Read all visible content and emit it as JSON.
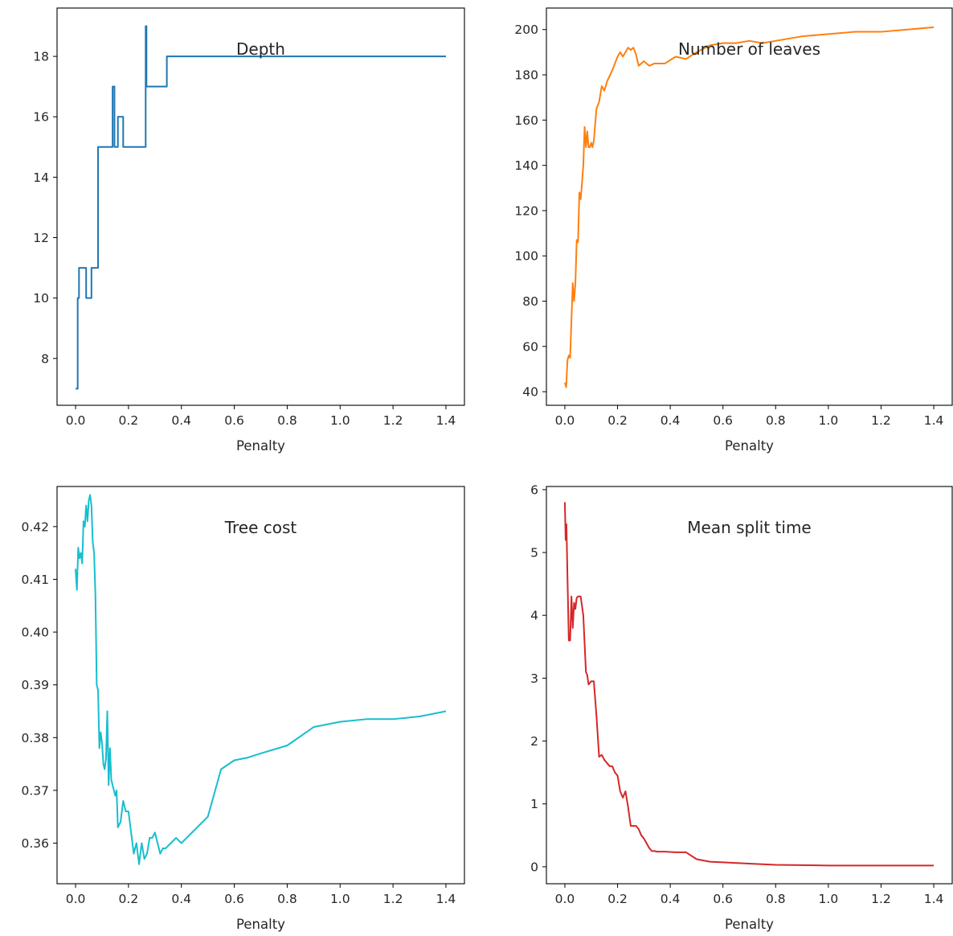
{
  "chart_data": [
    {
      "type": "line",
      "title": "Depth",
      "xlabel": "Penalty",
      "ylabel": "",
      "xlim": [
        -0.07,
        1.47
      ],
      "ylim": [
        6.45,
        19.6
      ],
      "xticks": [
        0.0,
        0.2,
        0.4,
        0.6,
        0.8,
        1.0,
        1.2,
        1.4
      ],
      "yticks": [
        8,
        10,
        12,
        14,
        16,
        18
      ],
      "xtick_labels": [
        "0.0",
        "0.2",
        "0.4",
        "0.6",
        "0.8",
        "1.0",
        "1.2",
        "1.4"
      ],
      "ytick_labels": [
        "8",
        "10",
        "12",
        "14",
        "16",
        "18"
      ],
      "grid": false,
      "series": [
        {
          "color": "#1f77b4",
          "x": [
            0.0,
            0.008,
            0.008,
            0.013,
            0.013,
            0.04,
            0.04,
            0.06,
            0.06,
            0.085,
            0.085,
            0.14,
            0.14,
            0.147,
            0.147,
            0.16,
            0.16,
            0.18,
            0.18,
            0.265,
            0.265,
            0.268,
            0.268,
            0.345,
            0.345,
            1.4
          ],
          "y": [
            7,
            7,
            10,
            10,
            11,
            11,
            10,
            10,
            11,
            11,
            15,
            15,
            17,
            17,
            15,
            15,
            16,
            16,
            15,
            15,
            19,
            19,
            17,
            17,
            18,
            18
          ]
        }
      ]
    },
    {
      "type": "line",
      "title": "Number of leaves",
      "xlabel": "Penalty",
      "ylabel": "",
      "xlim": [
        -0.07,
        1.47
      ],
      "ylim": [
        34,
        209.5
      ],
      "xticks": [
        0.0,
        0.2,
        0.4,
        0.6,
        0.8,
        1.0,
        1.2,
        1.4
      ],
      "yticks": [
        40,
        60,
        80,
        100,
        120,
        140,
        160,
        180,
        200
      ],
      "xtick_labels": [
        "0.0",
        "0.2",
        "0.4",
        "0.6",
        "0.8",
        "1.0",
        "1.2",
        "1.4"
      ],
      "ytick_labels": [
        "40",
        "60",
        "80",
        "100",
        "120",
        "140",
        "160",
        "180",
        "200"
      ],
      "grid": false,
      "series": [
        {
          "color": "#ff7f0e",
          "x": [
            0.0,
            0.005,
            0.01,
            0.015,
            0.02,
            0.03,
            0.035,
            0.04,
            0.045,
            0.05,
            0.055,
            0.06,
            0.065,
            0.07,
            0.075,
            0.08,
            0.085,
            0.09,
            0.095,
            0.1,
            0.105,
            0.11,
            0.12,
            0.13,
            0.14,
            0.15,
            0.16,
            0.18,
            0.2,
            0.21,
            0.22,
            0.24,
            0.25,
            0.26,
            0.27,
            0.28,
            0.29,
            0.3,
            0.32,
            0.34,
            0.38,
            0.42,
            0.46,
            0.5,
            0.55,
            0.6,
            0.65,
            0.7,
            0.75,
            0.8,
            0.9,
            1.0,
            1.1,
            1.2,
            1.3,
            1.4
          ],
          "y": [
            44,
            42,
            54,
            56,
            55,
            88,
            80,
            88,
            107,
            106,
            128,
            125,
            132,
            140,
            157,
            148,
            155,
            148,
            148,
            150,
            148,
            151,
            165,
            168,
            175,
            173,
            177,
            182,
            188,
            190,
            188,
            192,
            191,
            192,
            189,
            184,
            185,
            186,
            184,
            185,
            185,
            188,
            187,
            190,
            193,
            194,
            194,
            195,
            194,
            195,
            197,
            198,
            199,
            199,
            200,
            201
          ]
        }
      ]
    },
    {
      "type": "line",
      "title": "Tree cost",
      "xlabel": "Penalty",
      "ylabel": "",
      "xlim": [
        -0.07,
        1.47
      ],
      "ylim": [
        0.3523,
        0.4276
      ],
      "xticks": [
        0.0,
        0.2,
        0.4,
        0.6,
        0.8,
        1.0,
        1.2,
        1.4
      ],
      "yticks": [
        0.36,
        0.37,
        0.38,
        0.39,
        0.4,
        0.41,
        0.42
      ],
      "xtick_labels": [
        "0.0",
        "0.2",
        "0.4",
        "0.6",
        "0.8",
        "1.0",
        "1.2",
        "1.4"
      ],
      "ytick_labels": [
        "0.36",
        "0.37",
        "0.38",
        "0.39",
        "0.40",
        "0.41",
        "0.42"
      ],
      "grid": false,
      "series": [
        {
          "color": "#17becf",
          "x": [
            0.0,
            0.005,
            0.01,
            0.015,
            0.02,
            0.025,
            0.03,
            0.035,
            0.04,
            0.045,
            0.05,
            0.055,
            0.06,
            0.065,
            0.07,
            0.075,
            0.08,
            0.085,
            0.09,
            0.095,
            0.1,
            0.105,
            0.11,
            0.115,
            0.12,
            0.125,
            0.13,
            0.135,
            0.14,
            0.145,
            0.15,
            0.155,
            0.16,
            0.17,
            0.18,
            0.19,
            0.2,
            0.21,
            0.22,
            0.23,
            0.24,
            0.25,
            0.26,
            0.27,
            0.28,
            0.29,
            0.3,
            0.32,
            0.33,
            0.34,
            0.36,
            0.38,
            0.4,
            0.42,
            0.44,
            0.46,
            0.48,
            0.5,
            0.55,
            0.6,
            0.65,
            0.7,
            0.8,
            0.9,
            1.0,
            1.1,
            1.2,
            1.3,
            1.4
          ],
          "y": [
            0.412,
            0.408,
            0.416,
            0.414,
            0.415,
            0.413,
            0.421,
            0.42,
            0.424,
            0.421,
            0.425,
            0.426,
            0.424,
            0.417,
            0.415,
            0.407,
            0.39,
            0.389,
            0.378,
            0.381,
            0.379,
            0.375,
            0.374,
            0.376,
            0.385,
            0.371,
            0.378,
            0.372,
            0.371,
            0.37,
            0.369,
            0.37,
            0.363,
            0.364,
            0.368,
            0.366,
            0.366,
            0.362,
            0.358,
            0.36,
            0.356,
            0.36,
            0.357,
            0.358,
            0.361,
            0.361,
            0.362,
            0.358,
            0.359,
            0.359,
            0.36,
            0.361,
            0.36,
            0.361,
            0.362,
            0.363,
            0.364,
            0.365,
            0.374,
            0.3757,
            0.3762,
            0.377,
            0.3785,
            0.382,
            0.383,
            0.3835,
            0.3835,
            0.384,
            0.385
          ]
        }
      ]
    },
    {
      "type": "line",
      "title": "Mean split time",
      "xlabel": "Penalty",
      "ylabel": "",
      "xlim": [
        -0.07,
        1.47
      ],
      "ylim": [
        -0.27,
        6.05
      ],
      "xticks": [
        0.0,
        0.2,
        0.4,
        0.6,
        0.8,
        1.0,
        1.2,
        1.4
      ],
      "yticks": [
        0,
        1,
        2,
        3,
        4,
        5,
        6
      ],
      "xtick_labels": [
        "0.0",
        "0.2",
        "0.4",
        "0.6",
        "0.8",
        "1.0",
        "1.2",
        "1.4"
      ],
      "ytick_labels": [
        "0",
        "1",
        "2",
        "3",
        "4",
        "5",
        "6"
      ],
      "grid": false,
      "series": [
        {
          "color": "#d62728",
          "x": [
            0.0,
            0.003,
            0.006,
            0.01,
            0.015,
            0.02,
            0.025,
            0.03,
            0.035,
            0.04,
            0.045,
            0.05,
            0.06,
            0.07,
            0.08,
            0.085,
            0.09,
            0.1,
            0.11,
            0.12,
            0.13,
            0.14,
            0.15,
            0.16,
            0.17,
            0.18,
            0.19,
            0.2,
            0.21,
            0.22,
            0.23,
            0.24,
            0.25,
            0.26,
            0.27,
            0.28,
            0.29,
            0.3,
            0.32,
            0.33,
            0.34,
            0.35,
            0.38,
            0.42,
            0.46,
            0.5,
            0.55,
            0.6,
            0.7,
            0.8,
            1.0,
            1.2,
            1.4
          ],
          "y": [
            5.8,
            5.2,
            5.45,
            4.6,
            3.6,
            3.6,
            4.3,
            3.8,
            4.2,
            4.1,
            4.28,
            4.3,
            4.3,
            4.0,
            3.1,
            3.05,
            2.9,
            2.95,
            2.95,
            2.4,
            1.75,
            1.78,
            1.7,
            1.65,
            1.6,
            1.6,
            1.5,
            1.45,
            1.2,
            1.1,
            1.2,
            0.95,
            0.65,
            0.65,
            0.65,
            0.6,
            0.5,
            0.45,
            0.3,
            0.25,
            0.25,
            0.24,
            0.24,
            0.23,
            0.23,
            0.12,
            0.08,
            0.07,
            0.05,
            0.03,
            0.02,
            0.02,
            0.02
          ]
        }
      ]
    }
  ]
}
